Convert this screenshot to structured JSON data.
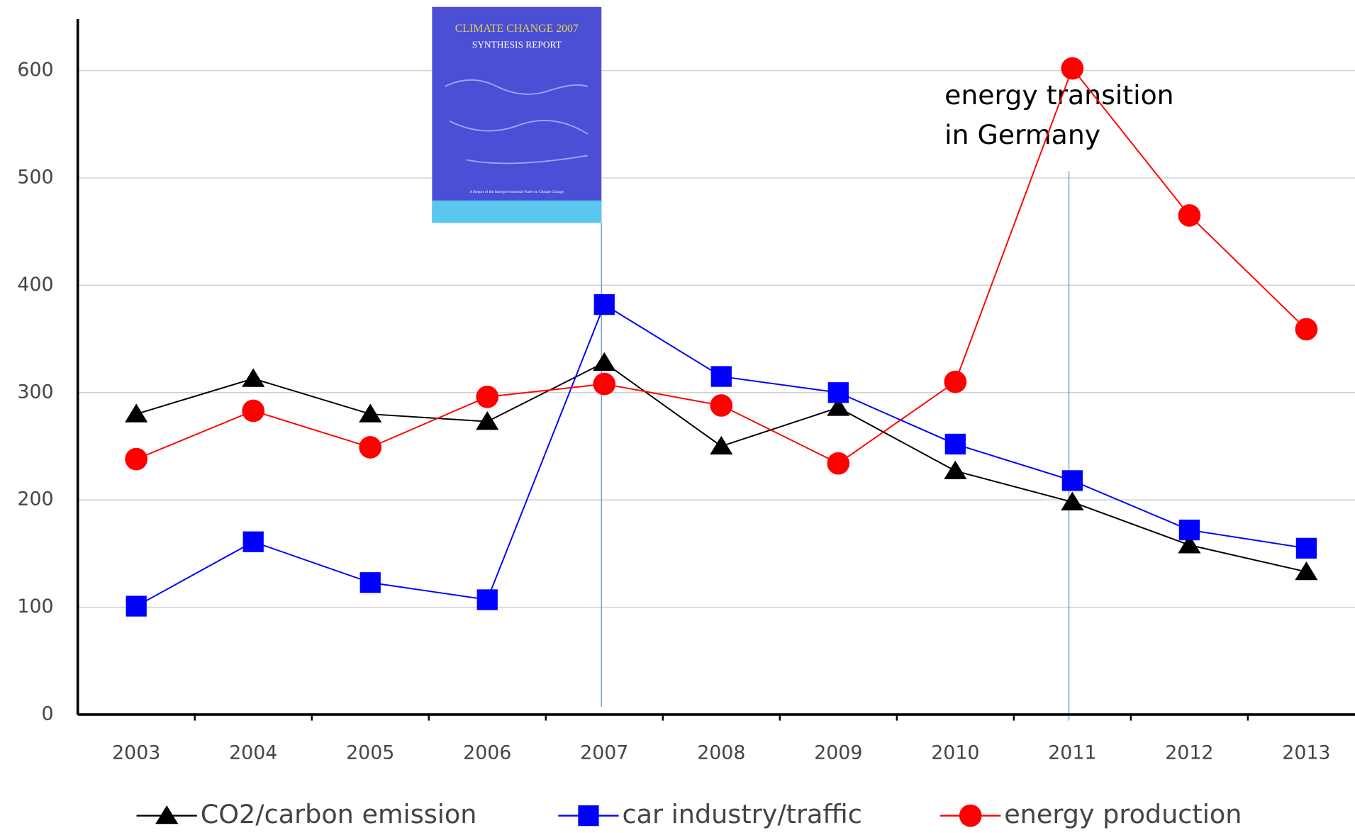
{
  "chart_data": {
    "type": "line",
    "categories": [
      "2003",
      "2004",
      "2005",
      "2006",
      "2007",
      "2008",
      "2009",
      "2010",
      "2011",
      "2012",
      "2013"
    ],
    "series": [
      {
        "name": "CO2/carbon emission",
        "color": "#000000",
        "marker": "triangle",
        "values": [
          280,
          313,
          280,
          273,
          328,
          250,
          286,
          227,
          198,
          158,
          133
        ]
      },
      {
        "name": "car industry/traffic",
        "color": "#0000ff",
        "marker": "square",
        "values": [
          101,
          161,
          123,
          107,
          382,
          315,
          300,
          252,
          218,
          172,
          155
        ]
      },
      {
        "name": "energy production",
        "color": "#ff0000",
        "marker": "circle",
        "values": [
          238,
          283,
          249,
          296,
          308,
          288,
          234,
          310,
          602,
          465,
          359
        ]
      }
    ],
    "ylim": [
      0,
      648
    ],
    "yticks": [
      0,
      100,
      200,
      300,
      400,
      500,
      600
    ],
    "grid": true,
    "legend": "bottom",
    "annotation": [
      "energy transition",
      "in Germany"
    ],
    "inset": {
      "title": "CLIMATE CHANGE 2007",
      "subtitle": "SYNTHESIS REPORT",
      "footer": "A Report of the Intergovernmental Panel on Climate Change"
    }
  }
}
